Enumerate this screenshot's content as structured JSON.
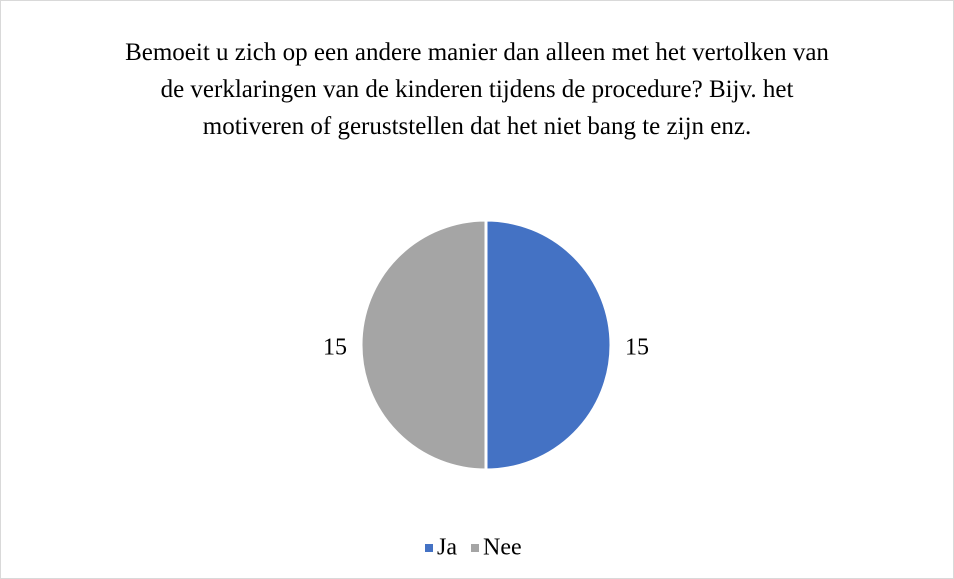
{
  "chart_data": {
    "type": "pie",
    "title": "Bemoeit u zich op een andere manier dan alleen met het vertolken van de verklaringen van de kinderen tijdens de procedure? Bijv. het motiveren of geruststellen dat het niet bang te zijn enz.",
    "categories": [
      "Ja",
      "Nee"
    ],
    "values": [
      15,
      15
    ],
    "colors": [
      "#4472c4",
      "#a5a5a5"
    ],
    "legend": "bottom"
  }
}
